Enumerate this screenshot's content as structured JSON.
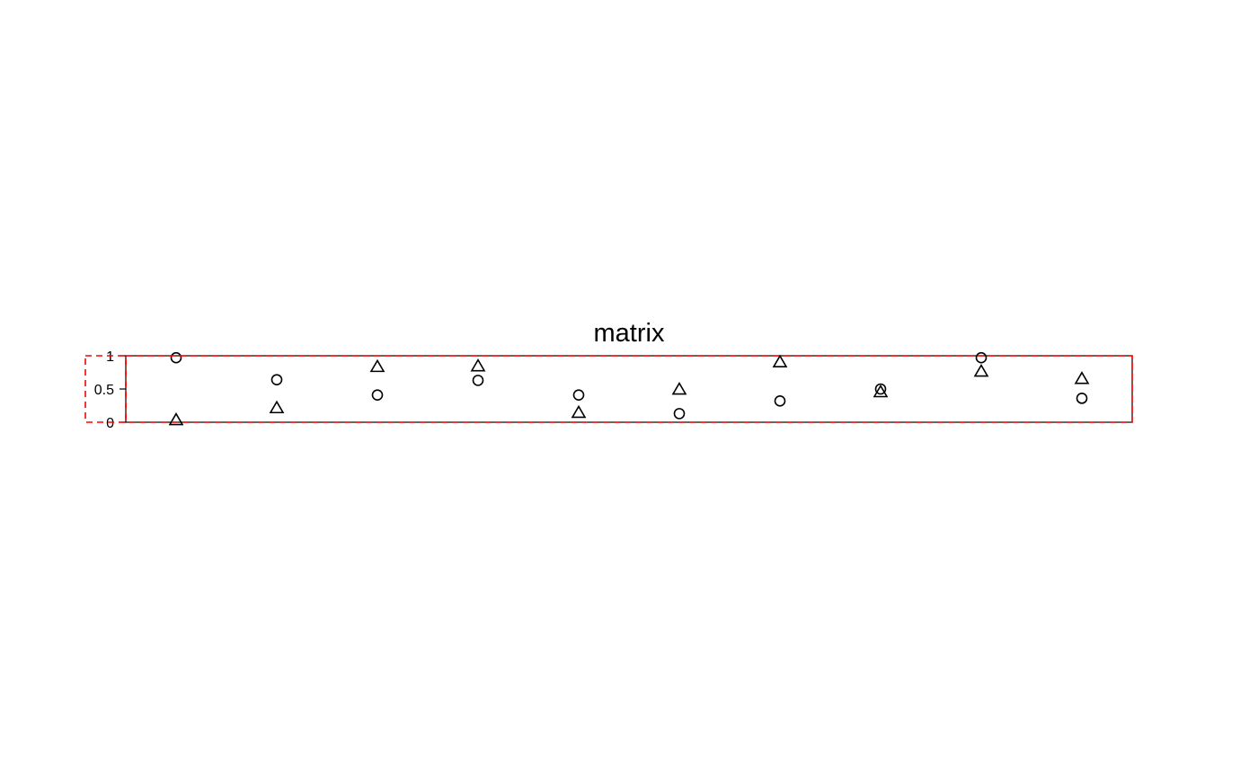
{
  "chart_data": {
    "type": "scatter",
    "title": "matrix",
    "xlabel": "",
    "ylabel": "",
    "ylim": [
      0,
      1
    ],
    "xlim": [
      0.5,
      10.5
    ],
    "y_ticks": [
      0,
      0.5,
      1
    ],
    "y_tick_labels": [
      "0",
      "0.5",
      "1"
    ],
    "x": [
      1,
      2,
      3,
      4,
      5,
      6,
      7,
      8,
      9,
      10
    ],
    "grid": false,
    "legend": "none",
    "series": [
      {
        "marker": "circle",
        "values": [
          0.97,
          0.64,
          0.41,
          0.63,
          0.41,
          0.13,
          0.32,
          0.5,
          0.97,
          0.36
        ]
      },
      {
        "marker": "triangle",
        "values": [
          0.03,
          0.21,
          0.83,
          0.84,
          0.14,
          0.49,
          0.9,
          0.45,
          0.76,
          0.65
        ]
      }
    ],
    "colors": {
      "marks": "#000000",
      "highlight_box": "#ff0000"
    }
  }
}
